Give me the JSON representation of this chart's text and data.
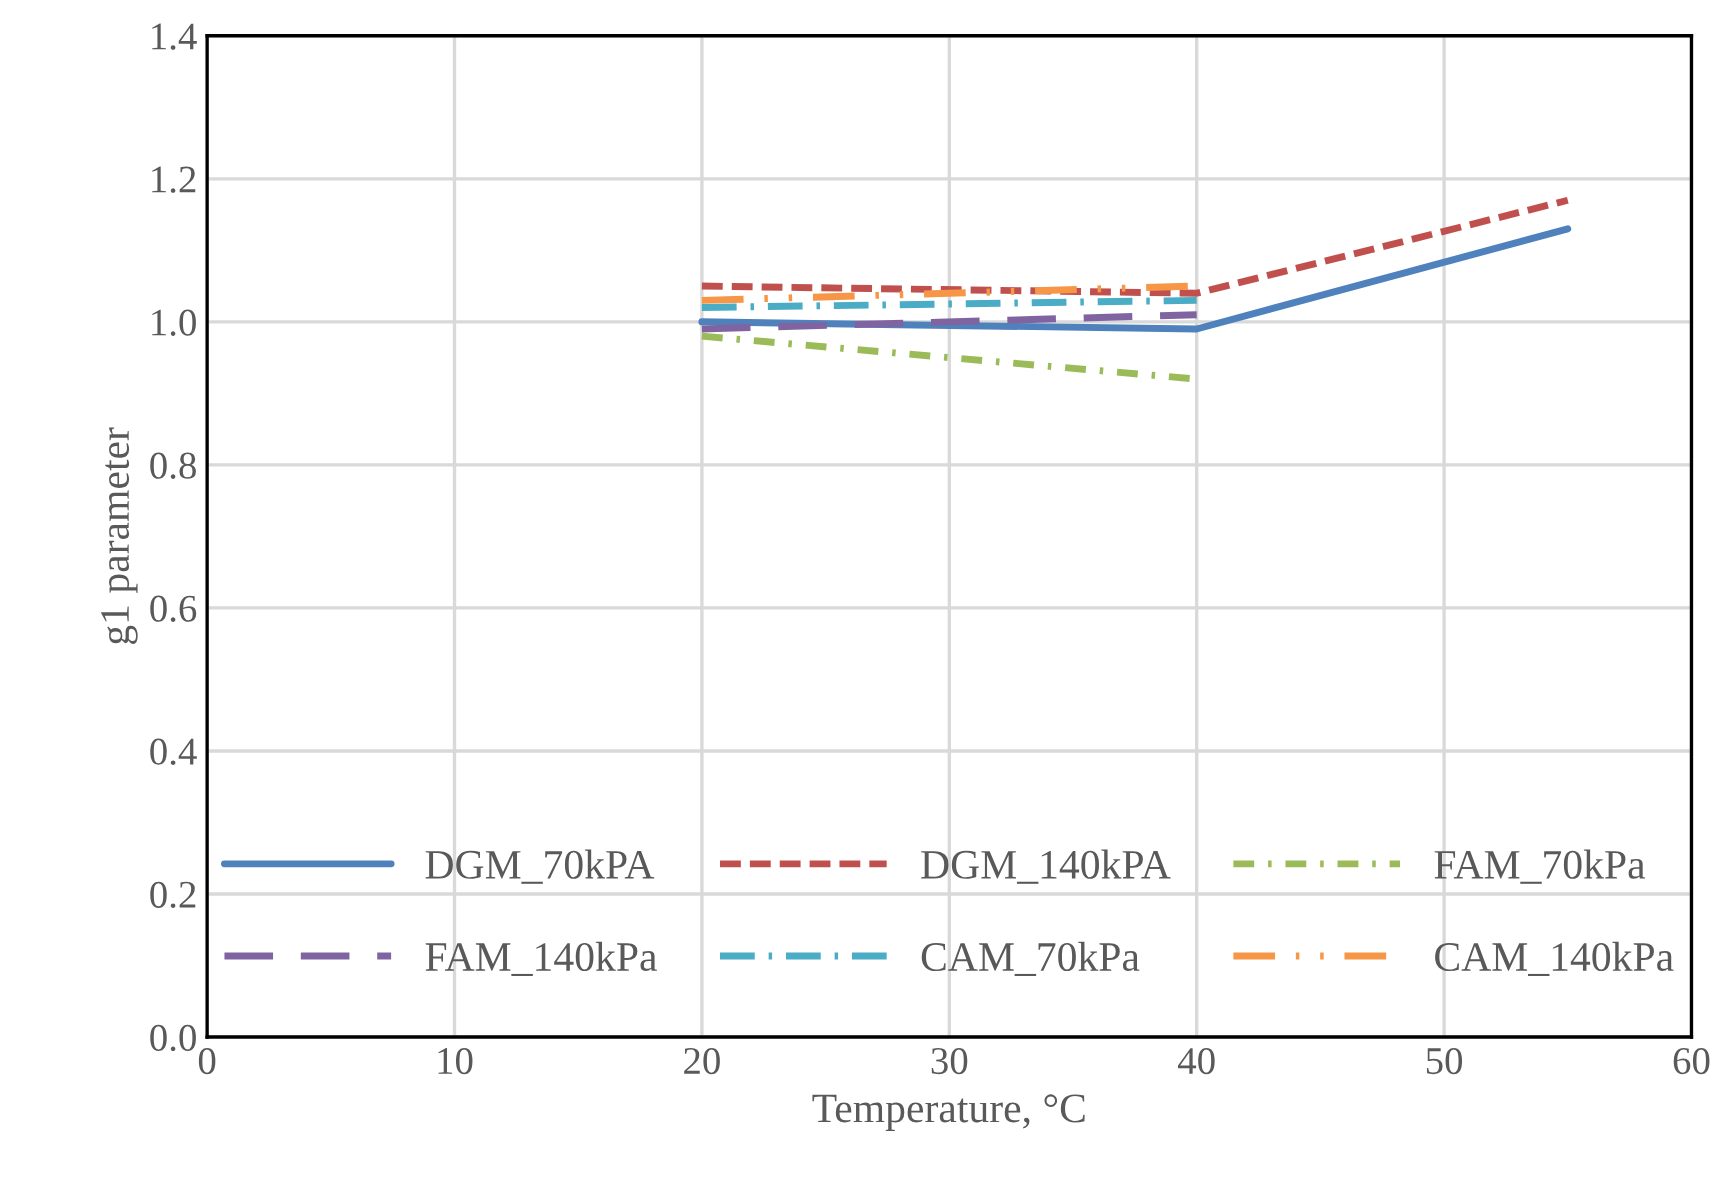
{
  "chart_data": {
    "type": "line",
    "xlabel": "Temperature, °C",
    "ylabel": "g1 parameter",
    "xlim": [
      0,
      60
    ],
    "xticks": [
      0,
      10,
      20,
      30,
      40,
      50,
      60
    ],
    "ylim": [
      0,
      1.4
    ],
    "yticks": [
      {
        "value": 0,
        "label": "0.0"
      },
      {
        "value": 0.2,
        "label": "0.2"
      },
      {
        "value": 0.4,
        "label": "0.4"
      },
      {
        "value": 0.6,
        "label": "0.6"
      },
      {
        "value": 0.8,
        "label": "0.8"
      },
      {
        "value": 1.0,
        "label": "1.0"
      },
      {
        "value": 1.2,
        "label": "1.2"
      },
      {
        "value": 1.4,
        "label": "1.4"
      }
    ],
    "grid": true,
    "legend": "bottom",
    "marker": "none",
    "series": [
      {
        "name": "DGM_70kPA",
        "color": "#4f81bd",
        "line_style": "solid",
        "x": [
          20,
          40,
          55
        ],
        "values": [
          1.0,
          0.99,
          1.13
        ]
      },
      {
        "name": "DGM_140kPA",
        "color": "#c0504d",
        "line_style": "dashed",
        "x": [
          20,
          40,
          55
        ],
        "values": [
          1.05,
          1.04,
          1.17
        ]
      },
      {
        "name": "FAM_70kPa",
        "color": "#9bbb59",
        "line_style": "dashdot",
        "x": [
          20,
          40
        ],
        "values": [
          0.98,
          0.92
        ]
      },
      {
        "name": "FAM_140kPa",
        "color": "#8064a2",
        "line_style": "longdash",
        "x": [
          20,
          40
        ],
        "values": [
          0.99,
          1.01
        ]
      },
      {
        "name": "CAM_70kPa",
        "color": "#4bacc6",
        "line_style": "longdashdot",
        "x": [
          20,
          40
        ],
        "values": [
          1.02,
          1.03
        ]
      },
      {
        "name": "CAM_140kPa",
        "color": "#f79646",
        "line_style": "longdashdotdot",
        "x": [
          20,
          40
        ],
        "values": [
          1.03,
          1.05
        ]
      }
    ]
  }
}
